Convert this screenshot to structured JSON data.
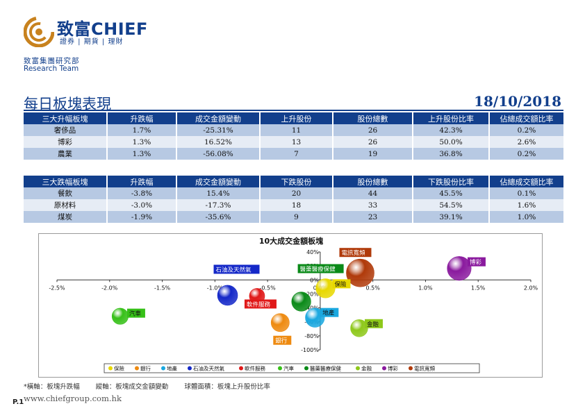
{
  "brand": {
    "name_cn": "致富",
    "name_en": "CHIEF",
    "tagline": "證券 | 期貨 | 理財",
    "colors": {
      "primary": "#123f8c",
      "accent": "#c8821e"
    }
  },
  "team": {
    "cn": "致富集團研究部",
    "en": "Research Team"
  },
  "page": {
    "title": "每日板塊表現",
    "date": "18/10/2018",
    "number": "P.1",
    "website": "www.chiefgroup.com.hk"
  },
  "table_up": {
    "headers": [
      "三大升幅板塊",
      "升跌幅",
      "成交金額變動",
      "上升股份",
      "股份總數",
      "上升股份比率",
      "佔總成交額比率"
    ],
    "rows": [
      [
        "奢侈品",
        "1.7%",
        "-25.31%",
        "11",
        "26",
        "42.3%",
        "0.2%"
      ],
      [
        "博彩",
        "1.3%",
        "16.52%",
        "13",
        "26",
        "50.0%",
        "2.6%"
      ],
      [
        "農業",
        "1.3%",
        "-56.08%",
        "7",
        "19",
        "36.8%",
        "0.2%"
      ]
    ]
  },
  "table_down": {
    "headers": [
      "三大跌幅板塊",
      "升跌幅",
      "成交金額變動",
      "下跌股份",
      "股份總數",
      "下跌股份比率",
      "佔總成交額比率"
    ],
    "rows": [
      [
        "餐飲",
        "-3.8%",
        "15.4%",
        "20",
        "44",
        "45.5%",
        "0.1%"
      ],
      [
        "原材料",
        "-3.0%",
        "-17.3%",
        "18",
        "33",
        "54.5%",
        "1.6%"
      ],
      [
        "煤炭",
        "-1.9%",
        "-35.6%",
        "9",
        "23",
        "39.1%",
        "1.0%"
      ]
    ]
  },
  "footnote": {
    "x_axis": "*橫軸：板塊升跌幅",
    "y_axis": "縱軸：板塊成交金額變動",
    "bubble": "球體面積：板塊上升股份比率"
  },
  "chart_data": {
    "type": "scatter",
    "title": "10大成交金額板塊",
    "xlabel": "",
    "ylabel": "",
    "xlim": [
      -2.5,
      2.0
    ],
    "ylim": [
      -100,
      40
    ],
    "x_ticks": [
      "-2.5%",
      "-2.0%",
      "-1.5%",
      "-1.0%",
      "-0.5%",
      "0.0%",
      "0.5%",
      "1.0%",
      "1.5%",
      "2.0%"
    ],
    "y_ticks": [
      "40%",
      "20%",
      "0%",
      "-20%",
      "-40%",
      "-60%",
      "-80%",
      "-100%"
    ],
    "legend_position": "bottom",
    "series": [
      {
        "name": "保險",
        "x": 0.05,
        "y": -12,
        "size": 40,
        "color": "#e8d800"
      },
      {
        "name": "銀行",
        "x": -0.38,
        "y": -61,
        "size": 38,
        "color": "#ee8a10"
      },
      {
        "name": "地產",
        "x": -0.05,
        "y": -54,
        "size": 40,
        "color": "#1aa8e0"
      },
      {
        "name": "石油及天然氣",
        "x": -0.88,
        "y": -22,
        "size": 42,
        "color": "#1428c8"
      },
      {
        "name": "軟件服務",
        "x": -0.6,
        "y": -23,
        "size": 32,
        "color": "#e01818"
      },
      {
        "name": "汽車",
        "x": -1.9,
        "y": -52,
        "size": 34,
        "color": "#36c018"
      },
      {
        "name": "醫藥醫療保健",
        "x": -0.18,
        "y": -31,
        "size": 40,
        "color": "#0a8a18"
      },
      {
        "name": "金融",
        "x": 0.37,
        "y": -69,
        "size": 36,
        "color": "#8ec81a"
      },
      {
        "name": "博彩",
        "x": 1.32,
        "y": 16.52,
        "size": 50,
        "color": "#8a1a9e"
      },
      {
        "name": "電訊寬頻",
        "x": 0.38,
        "y": 10,
        "size": 58,
        "color": "#b03a0a"
      }
    ]
  }
}
